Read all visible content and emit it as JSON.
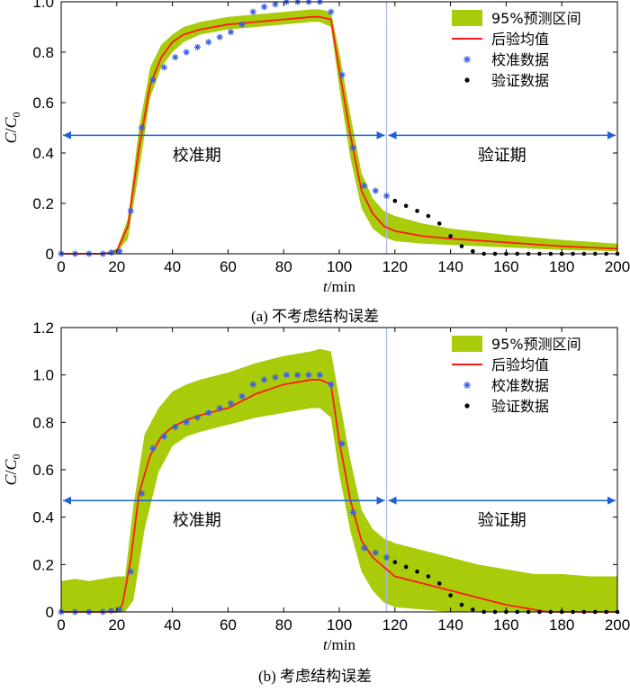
{
  "figure": {
    "caption_a": "(a) 不考虑结构误差",
    "caption_b": "(b) 考虑结构误差"
  },
  "colors": {
    "band": "#a8cc0a",
    "mean": "#ff1a1a",
    "calib": "#3a5ee8",
    "valid": "#000000",
    "arrow": "#1f5fd0",
    "divider": "#a9b9e8"
  },
  "chart_data": [
    {
      "type": "area",
      "panel": "a",
      "xlabel_italic": "t",
      "xlabel_rest": "/min",
      "ylabel": "C/C0",
      "xlim": [
        0,
        200
      ],
      "ylim": [
        0,
        1.0
      ],
      "xticks": [
        0,
        20,
        40,
        60,
        80,
        100,
        120,
        140,
        160,
        180,
        200
      ],
      "yticks": [
        0,
        0.2,
        0.4,
        0.6,
        0.8,
        1.0
      ],
      "ytick_labels": [
        "0",
        "0.2",
        "0.4",
        "0.6",
        "0.8",
        "1.0"
      ],
      "divider_x": 117,
      "arrow_y": 0.47,
      "region_left_label": "校准期",
      "region_right_label": "验证期",
      "legend_position": "top-right",
      "legend": [
        "95%预测区间",
        "后验均值",
        "校准数据",
        "验证数据"
      ],
      "band": {
        "name": "95%预测区间",
        "x": [
          0,
          15,
          20,
          24,
          28,
          32,
          36,
          40,
          44,
          50,
          60,
          70,
          80,
          90,
          93,
          97,
          100,
          104,
          108,
          112,
          116,
          120,
          130,
          140,
          160,
          180,
          200
        ],
        "lower": [
          0,
          0,
          0.005,
          0.06,
          0.33,
          0.62,
          0.74,
          0.8,
          0.84,
          0.87,
          0.89,
          0.9,
          0.91,
          0.92,
          0.92,
          0.9,
          0.66,
          0.38,
          0.18,
          0.1,
          0.065,
          0.05,
          0.04,
          0.035,
          0.025,
          0.015,
          0.01
        ],
        "upper": [
          0,
          0,
          0.02,
          0.14,
          0.5,
          0.74,
          0.83,
          0.87,
          0.9,
          0.92,
          0.94,
          0.95,
          0.96,
          0.97,
          0.97,
          0.96,
          0.8,
          0.55,
          0.32,
          0.22,
          0.17,
          0.15,
          0.12,
          0.1,
          0.075,
          0.055,
          0.04
        ]
      },
      "mean": {
        "name": "后验均值",
        "x": [
          0,
          15,
          20,
          24,
          28,
          32,
          36,
          40,
          44,
          50,
          60,
          70,
          80,
          90,
          93,
          97,
          100,
          104,
          108,
          112,
          116,
          120,
          130,
          140,
          160,
          180,
          200
        ],
        "y": [
          0,
          0,
          0.01,
          0.11,
          0.42,
          0.67,
          0.78,
          0.84,
          0.87,
          0.89,
          0.91,
          0.92,
          0.93,
          0.94,
          0.94,
          0.93,
          0.73,
          0.47,
          0.25,
          0.16,
          0.11,
          0.09,
          0.07,
          0.06,
          0.045,
          0.03,
          0.02
        ]
      },
      "calibration": {
        "name": "校准数据",
        "x": [
          0,
          5,
          10,
          15,
          18,
          21,
          25,
          29,
          33,
          37,
          41,
          45,
          49,
          53,
          57,
          61,
          65,
          69,
          73,
          77,
          81,
          85,
          89,
          93,
          97,
          101,
          105,
          109,
          113,
          117
        ],
        "y": [
          0,
          0,
          0,
          0,
          0.005,
          0.01,
          0.17,
          0.5,
          0.69,
          0.74,
          0.78,
          0.8,
          0.82,
          0.84,
          0.86,
          0.88,
          0.91,
          0.96,
          0.98,
          0.99,
          1.0,
          1.0,
          1.0,
          1.0,
          0.96,
          0.71,
          0.42,
          0.27,
          0.25,
          0.23
        ]
      },
      "validation": {
        "name": "验证数据",
        "x": [
          120,
          124,
          128,
          132,
          136,
          140,
          144,
          148,
          152,
          156,
          160,
          164,
          168,
          172,
          176,
          180,
          184,
          188,
          192,
          196,
          200
        ],
        "y": [
          0.21,
          0.19,
          0.17,
          0.15,
          0.12,
          0.07,
          0.03,
          0.01,
          0,
          0,
          0,
          0,
          0,
          0,
          0,
          0,
          0,
          0,
          0,
          0,
          0
        ]
      }
    },
    {
      "type": "area",
      "panel": "b",
      "xlabel_italic": "t",
      "xlabel_rest": "/min",
      "ylabel": "C/C0",
      "xlim": [
        0,
        200
      ],
      "ylim": [
        0,
        1.2
      ],
      "xticks": [
        0,
        20,
        40,
        60,
        80,
        100,
        120,
        140,
        160,
        180,
        200
      ],
      "yticks": [
        0,
        0.2,
        0.4,
        0.6,
        0.8,
        1.0,
        1.2
      ],
      "ytick_labels": [
        "0",
        "0.2",
        "0.4",
        "0.6",
        "0.8",
        "1.0",
        "1.2"
      ],
      "divider_x": 117,
      "arrow_y": 0.47,
      "region_left_label": "校准期",
      "region_right_label": "验证期",
      "legend_position": "top-right",
      "legend": [
        "95%预测区间",
        "后验均值",
        "校准数据",
        "验证数据"
      ],
      "band": {
        "name": "95%预测区间",
        "x": [
          0,
          5,
          10,
          15,
          20,
          23,
          26,
          30,
          35,
          40,
          45,
          50,
          60,
          70,
          80,
          90,
          93,
          97,
          100,
          104,
          108,
          112,
          116,
          120,
          130,
          140,
          150,
          160,
          170,
          180,
          190,
          200
        ],
        "lower": [
          0,
          0,
          0,
          0,
          0,
          0,
          0.05,
          0.35,
          0.59,
          0.7,
          0.74,
          0.76,
          0.79,
          0.82,
          0.84,
          0.86,
          0.86,
          0.82,
          0.58,
          0.34,
          0.17,
          0.09,
          0.04,
          0.02,
          0.01,
          0,
          0,
          0,
          0,
          0,
          0,
          0
        ],
        "upper": [
          0.13,
          0.14,
          0.13,
          0.14,
          0.15,
          0.15,
          0.45,
          0.75,
          0.86,
          0.93,
          0.96,
          0.98,
          1.01,
          1.05,
          1.08,
          1.1,
          1.11,
          1.1,
          0.9,
          0.64,
          0.43,
          0.35,
          0.31,
          0.29,
          0.26,
          0.23,
          0.2,
          0.18,
          0.16,
          0.16,
          0.15,
          0.15
        ]
      },
      "mean": {
        "name": "后验均值",
        "x": [
          0,
          15,
          20,
          22,
          25,
          28,
          32,
          36,
          40,
          45,
          50,
          60,
          70,
          80,
          90,
          93,
          97,
          100,
          104,
          108,
          112,
          116,
          120,
          130,
          140,
          150,
          160,
          170,
          175,
          180,
          200
        ],
        "y": [
          0,
          0,
          0,
          0.03,
          0.22,
          0.5,
          0.66,
          0.74,
          0.78,
          0.81,
          0.83,
          0.86,
          0.92,
          0.96,
          0.98,
          0.98,
          0.96,
          0.72,
          0.47,
          0.3,
          0.23,
          0.19,
          0.15,
          0.12,
          0.09,
          0.06,
          0.03,
          0.01,
          0,
          0,
          0
        ]
      },
      "calibration": {
        "name": "校准数据",
        "x": [
          0,
          5,
          10,
          15,
          18,
          21,
          25,
          29,
          33,
          37,
          41,
          45,
          49,
          53,
          57,
          61,
          65,
          69,
          73,
          77,
          81,
          85,
          89,
          93,
          97,
          101,
          105,
          109,
          113,
          117
        ],
        "y": [
          0,
          0,
          0,
          0,
          0.005,
          0.01,
          0.17,
          0.5,
          0.69,
          0.74,
          0.78,
          0.8,
          0.82,
          0.84,
          0.86,
          0.88,
          0.91,
          0.96,
          0.98,
          0.99,
          1.0,
          1.0,
          1.0,
          1.0,
          0.96,
          0.71,
          0.42,
          0.27,
          0.25,
          0.23
        ]
      },
      "validation": {
        "name": "验证数据",
        "x": [
          120,
          124,
          128,
          132,
          136,
          140,
          144,
          148,
          152,
          156,
          160,
          164,
          168,
          172,
          176,
          180,
          184,
          188,
          192,
          196,
          200
        ],
        "y": [
          0.21,
          0.19,
          0.17,
          0.15,
          0.12,
          0.07,
          0.03,
          0.01,
          0,
          0,
          0,
          0,
          0,
          0,
          0,
          0,
          0,
          0,
          0,
          0,
          0
        ]
      }
    }
  ]
}
